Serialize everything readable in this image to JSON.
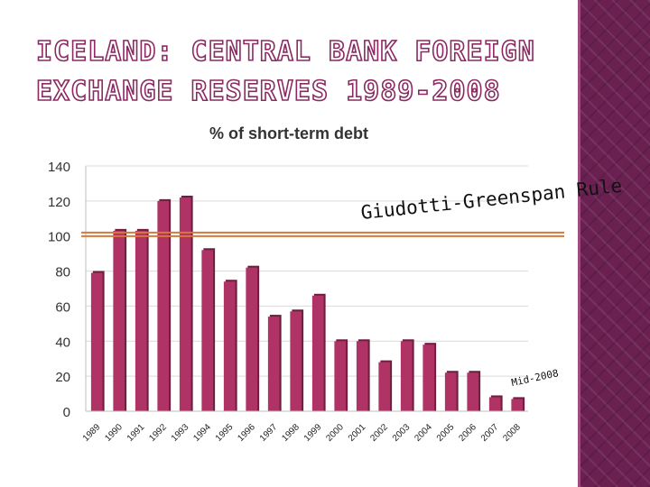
{
  "slide": {
    "title_line1": "ICELAND: CENTRAL BANK FOREIGN",
    "title_line2": "EXCHANGE RESERVES 1989-2008"
  },
  "chart_data": {
    "type": "bar",
    "title": "% of short-term debt",
    "categories": [
      "1989",
      "1990",
      "1991",
      "1992",
      "1993",
      "1994",
      "1995",
      "1996",
      "1997",
      "1998",
      "1999",
      "2000",
      "2001",
      "2002",
      "2003",
      "2004",
      "2005",
      "2006",
      "2007",
      "2008"
    ],
    "values": [
      79,
      103,
      103,
      120,
      122,
      92,
      74,
      82,
      54,
      57,
      66,
      40,
      40,
      28,
      40,
      38,
      22,
      22,
      8,
      7
    ],
    "ylim": [
      0,
      140
    ],
    "yticks": [
      0,
      20,
      40,
      60,
      80,
      100,
      120,
      140
    ],
    "grid": true,
    "bar_color": "#b03366",
    "reference_line": {
      "value": 102,
      "color": "#d7783a"
    },
    "annotations": {
      "rule": "Giudotti-Greenspan Rule",
      "mid": "Mid-2008"
    }
  }
}
